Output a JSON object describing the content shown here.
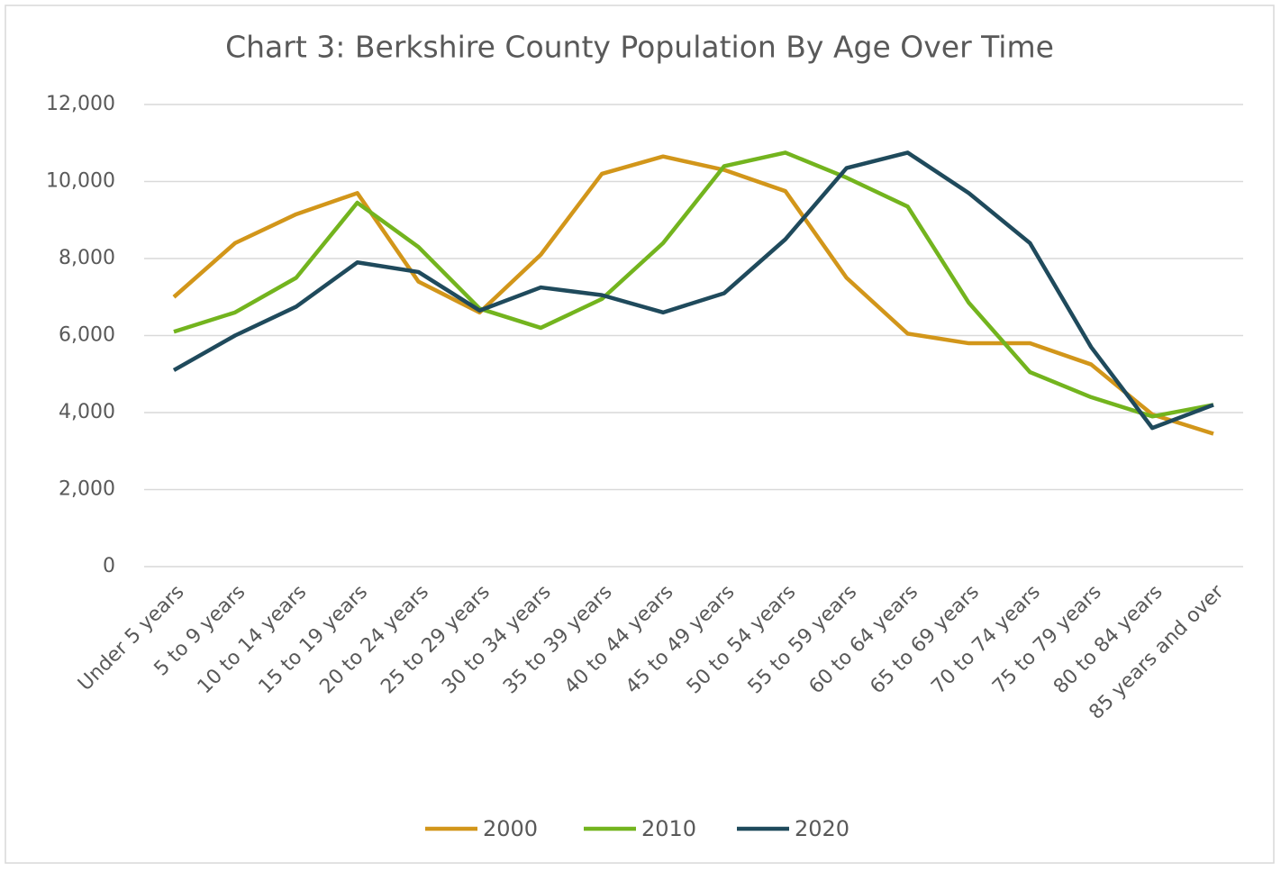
{
  "chart_data": {
    "type": "line",
    "title": "Chart 3: Berkshire County Population By Age Over Time",
    "categories": [
      "Under 5 years",
      "5 to 9 years",
      "10 to 14 years",
      "15 to 19 years",
      "20 to 24 years",
      "25 to 29 years",
      "30 to 34 years",
      "35 to 39 years",
      "40 to 44 years",
      "45 to 49 years",
      "50 to 54 years",
      "55 to 59 years",
      "60 to 64 years",
      "65 to 69 years",
      "70 to 74 years",
      "75 to 79 years",
      "80 to 84 years",
      "85 years and over"
    ],
    "series": [
      {
        "name": "2000",
        "color": "#d2961a",
        "values": [
          7000,
          8400,
          9150,
          9700,
          7400,
          6600,
          8100,
          10200,
          10650,
          10300,
          9750,
          7500,
          6050,
          5800,
          5800,
          5250,
          3950,
          3450
        ]
      },
      {
        "name": "2010",
        "color": "#73b41e",
        "values": [
          6100,
          6600,
          7500,
          9450,
          8300,
          6700,
          6200,
          6950,
          8400,
          10400,
          10750,
          10100,
          9350,
          6850,
          5050,
          4400,
          3900,
          4200
        ]
      },
      {
        "name": "2020",
        "color": "#1f4a5c",
        "values": [
          5100,
          6000,
          6750,
          7900,
          7650,
          6650,
          7250,
          7050,
          6600,
          7100,
          8500,
          10350,
          10750,
          9700,
          8400,
          5700,
          3600,
          4200
        ]
      }
    ],
    "ylim": [
      0,
      12000
    ],
    "yticks": [
      0,
      {
        "value": 2000,
        "label": "2,000"
      },
      {
        "value": 4000,
        "label": "4,000"
      },
      {
        "value": 6000,
        "label": "6,000"
      },
      {
        "value": 8000,
        "label": "8,000"
      },
      {
        "value": 10000,
        "label": "10,000"
      },
      {
        "value": 12000,
        "label": "12,000"
      }
    ],
    "grid": true,
    "legend": "bottom"
  }
}
